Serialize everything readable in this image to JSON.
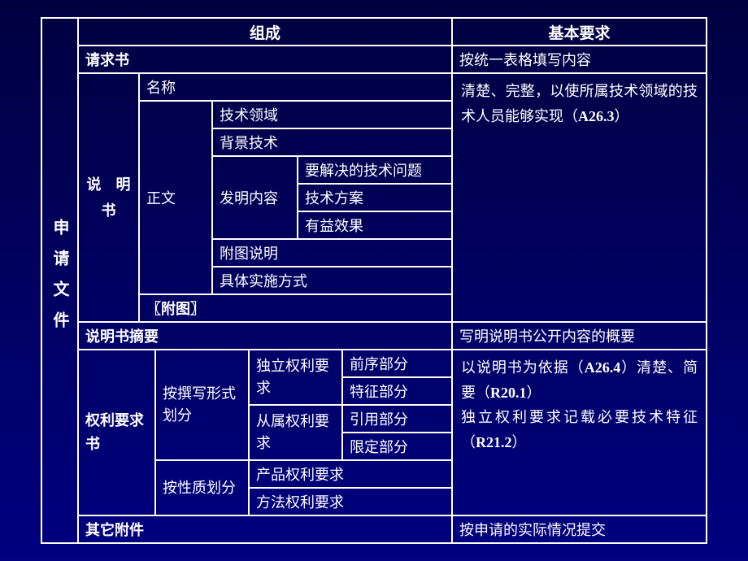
{
  "colors": {
    "background_top": "#000040",
    "background_bottom": "#000080",
    "text": "#ffffff",
    "border": "#ffffff"
  },
  "typography": {
    "base_fontsize": 18,
    "header_fontsize": 19,
    "vertical_fontsize": 20
  },
  "leftLabel": "申请文件",
  "headers": {
    "composition": "组成",
    "requirement": "基本要求"
  },
  "rows": {
    "qingqiu": {
      "label": "请求书",
      "req": "按统一表格填写内容"
    },
    "shuoming": {
      "label": "说　明书",
      "children": {
        "mingcheng": "名称",
        "zhengwen": {
          "label": "正文",
          "items": {
            "jishulingyu": "技术领域",
            "beijingjishu": "背景技术",
            "faming": {
              "label": "发明内容",
              "items": {
                "wenti": "要解决的技术问题",
                "fangan": "技术方案",
                "xiaoguo": "有益效果"
              }
            },
            "futushuoming": "附图说明",
            "jutishishi": "具体实施方式"
          }
        },
        "futu": "〖附图〗"
      },
      "req": "清楚、完整，以使所属技术领域的技术人员能够实现（A26.3）"
    },
    "zhaiyao": {
      "label": "说明书摘要",
      "req": "写明说明书公开内容的概要"
    },
    "quanli": {
      "label": "权利要求书",
      "groups": {
        "zhuanxie": {
          "label": "按撰写形式划分",
          "subs": {
            "duli": {
              "label": "独立权利要求",
              "items": {
                "qianxu": "前序部分",
                "tezheng": "特征部分"
              }
            },
            "congshu": {
              "label": "从属权利要求",
              "items": {
                "yinyong": "引用部分",
                "xianding": "限定部分"
              }
            }
          }
        },
        "xingzhi": {
          "label": "按性质划分",
          "items": {
            "chanpin": "产品权利要求",
            "fangfa": "方法权利要求"
          }
        }
      },
      "req": "以说明书为依据（A26.4）清楚、简要（R20.1）\n独立权利要求记载必要技术特征（R21.2）"
    },
    "qita": {
      "label": "其它附件",
      "req": "按申请的实际情况提交"
    }
  }
}
